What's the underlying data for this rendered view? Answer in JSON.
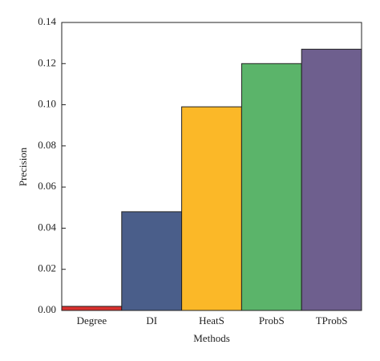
{
  "chart_data": {
    "type": "bar",
    "x_label": "Methods",
    "y_label": "Precision",
    "categories": [
      "Degree",
      "DI",
      "HeatS",
      "ProbS",
      "TProbS"
    ],
    "values": [
      0.002,
      0.048,
      0.099,
      0.12,
      0.127
    ],
    "colors": [
      "#d9302e",
      "#4a5e8a",
      "#fbb828",
      "#5bb46a",
      "#6e5f8e"
    ],
    "ylim": [
      0,
      0.14
    ],
    "yticks": [
      {
        "value": 0,
        "label": "0.00"
      },
      {
        "value": 0.02,
        "label": "0.02"
      },
      {
        "value": 0.04,
        "label": "0.04"
      },
      {
        "value": 0.06,
        "label": "0.06"
      },
      {
        "value": 0.08,
        "label": "0.08"
      },
      {
        "value": 0.1,
        "label": "0.10"
      },
      {
        "value": 0.12,
        "label": "0.12"
      },
      {
        "value": 0.14,
        "label": "0.14"
      }
    ]
  }
}
